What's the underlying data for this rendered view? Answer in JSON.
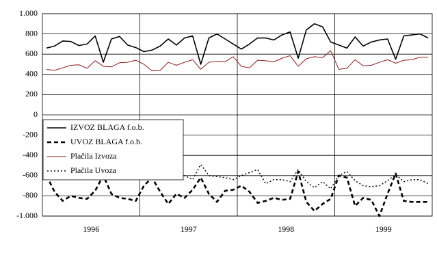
{
  "chart_data": {
    "type": "line",
    "categories": [
      null,
      null,
      null,
      null,
      null,
      "1996",
      null,
      null,
      null,
      null,
      null,
      null,
      null,
      null,
      null,
      null,
      null,
      "1997",
      null,
      null,
      null,
      null,
      null,
      null,
      null,
      null,
      null,
      null,
      null,
      "1998",
      null,
      null,
      null,
      null,
      null,
      null,
      null,
      null,
      null,
      null,
      null,
      "1999",
      null,
      null,
      null,
      null,
      null,
      null
    ],
    "series": [
      {
        "name": "IZVOZ BLAGA f.o.b.",
        "color": "#000000",
        "dash": "solid",
        "values": [
          660,
          680,
          730,
          725,
          685,
          700,
          780,
          520,
          750,
          775,
          690,
          665,
          625,
          640,
          680,
          750,
          690,
          760,
          780,
          500,
          760,
          800,
          750,
          700,
          650,
          700,
          760,
          760,
          740,
          790,
          820,
          560,
          840,
          900,
          870,
          720,
          690,
          660,
          770,
          680,
          720,
          740,
          750,
          550,
          780,
          790,
          800,
          760
        ]
      },
      {
        "name": "UVOZ BLAGA f.o.b.",
        "color": "#000000",
        "dash": "dashed",
        "values": [
          -600,
          -760,
          -850,
          -800,
          -820,
          -830,
          -750,
          -600,
          -780,
          -820,
          -830,
          -850,
          -700,
          -620,
          -760,
          -880,
          -780,
          -820,
          -740,
          -620,
          -780,
          -860,
          -750,
          -740,
          -700,
          -760,
          -870,
          -850,
          -820,
          -840,
          -830,
          -560,
          -860,
          -950,
          -880,
          -830,
          -600,
          -620,
          -900,
          -820,
          -840,
          -1000,
          -780,
          -580,
          -850,
          -860,
          -860,
          -860
        ]
      },
      {
        "name": "Plačila Izvoza",
        "color": "#8b1a1a",
        "dash": "solid-thin",
        "values": [
          450,
          440,
          465,
          490,
          495,
          460,
          535,
          480,
          475,
          515,
          520,
          540,
          500,
          435,
          440,
          520,
          490,
          520,
          545,
          450,
          520,
          530,
          525,
          575,
          480,
          465,
          540,
          535,
          525,
          560,
          585,
          480,
          555,
          575,
          565,
          635,
          450,
          460,
          545,
          485,
          490,
          520,
          545,
          510,
          540,
          545,
          570,
          570
        ]
      },
      {
        "name": "Plačila Uvoza",
        "color": "#000000",
        "dash": "dotted",
        "values": [
          -540,
          -540,
          -540,
          -600,
          -570,
          -540,
          -640,
          -520,
          -590,
          -580,
          -590,
          -620,
          -590,
          -550,
          -520,
          -500,
          -620,
          -600,
          -640,
          -490,
          -600,
          -610,
          -620,
          -640,
          -600,
          -570,
          -540,
          -680,
          -640,
          -640,
          -660,
          -540,
          -660,
          -720,
          -660,
          -730,
          -600,
          -560,
          -650,
          -700,
          -710,
          -700,
          -650,
          -590,
          -660,
          -640,
          -640,
          -680
        ]
      }
    ],
    "ylim": [
      -1000,
      1000
    ],
    "yticks": [
      {
        "value": -1000,
        "label": "-1.000"
      },
      -800,
      -600,
      -400,
      -200,
      0,
      200,
      400,
      600,
      800,
      {
        "value": 1000,
        "label": "1.000"
      }
    ],
    "grid": true,
    "legend": "left"
  }
}
